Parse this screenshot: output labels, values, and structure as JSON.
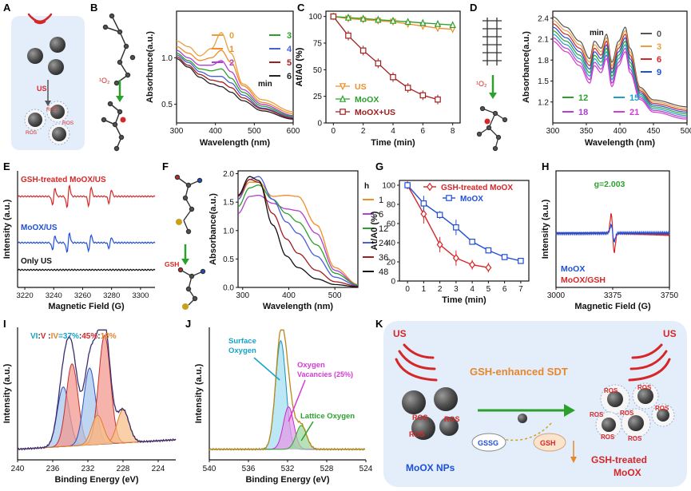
{
  "panel_labels": {
    "A": "A",
    "B": "B",
    "C": "C",
    "D": "D",
    "E": "E",
    "F": "F",
    "G": "G",
    "H": "H",
    "I": "I",
    "J": "J",
    "K": "K"
  },
  "colors": {
    "red": "#d62728",
    "blue": "#1f4fd6",
    "green": "#2ca02c",
    "orange": "#f28c28",
    "purple": "#b040d0",
    "darkred": "#a31d1d",
    "cyan": "#17a2c8",
    "magenta": "#d43ad4",
    "paleblue": "#e3eefa"
  },
  "panelA": {
    "us": "US",
    "ros": "ROS",
    "o2": "¹O₂"
  },
  "panelB": {
    "chart_data": {
      "type": "line",
      "title": "",
      "xlabel": "Wavelength (nm)",
      "ylabel": "Absorbance(a.u.)",
      "xlim": [
        300,
        600
      ],
      "ylim": [
        0.3,
        1.5
      ],
      "xticks": [
        "300",
        "400",
        "500",
        "600"
      ],
      "yticks": [
        "0.5",
        "1.0"
      ],
      "legend_title": "min",
      "series": [
        {
          "name": "0",
          "color": "#e8a040",
          "values": [
            [
              300,
              1.18
            ],
            [
              330,
              1.12
            ],
            [
              360,
              1.02
            ],
            [
              390,
              1.1
            ],
            [
              415,
              1.27
            ],
            [
              440,
              1.05
            ],
            [
              470,
              0.72
            ],
            [
              520,
              0.55
            ],
            [
              600,
              0.42
            ]
          ]
        },
        {
          "name": "1",
          "color": "#f28c28",
          "values": [
            [
              300,
              1.12
            ],
            [
              330,
              1.05
            ],
            [
              360,
              0.97
            ],
            [
              390,
              1.0
            ],
            [
              415,
              1.08
            ],
            [
              440,
              0.95
            ],
            [
              470,
              0.7
            ],
            [
              520,
              0.52
            ],
            [
              600,
              0.4
            ]
          ]
        },
        {
          "name": "2",
          "color": "#b040d0",
          "values": [
            [
              300,
              1.08
            ],
            [
              330,
              1.0
            ],
            [
              360,
              0.92
            ],
            [
              390,
              0.92
            ],
            [
              415,
              0.97
            ],
            [
              440,
              0.85
            ],
            [
              470,
              0.66
            ],
            [
              520,
              0.5
            ],
            [
              600,
              0.38
            ]
          ]
        },
        {
          "name": "3",
          "color": "#2ca02c",
          "values": [
            [
              300,
              1.05
            ],
            [
              330,
              0.97
            ],
            [
              360,
              0.88
            ],
            [
              390,
              0.86
            ],
            [
              415,
              0.88
            ],
            [
              440,
              0.78
            ],
            [
              470,
              0.63
            ],
            [
              520,
              0.48
            ],
            [
              600,
              0.37
            ]
          ]
        },
        {
          "name": "4",
          "color": "#4a5ed8",
          "values": [
            [
              300,
              1.03
            ],
            [
              330,
              0.95
            ],
            [
              360,
              0.85
            ],
            [
              390,
              0.8
            ],
            [
              415,
              0.8
            ],
            [
              440,
              0.73
            ],
            [
              470,
              0.6
            ],
            [
              520,
              0.46
            ],
            [
              600,
              0.36
            ]
          ]
        },
        {
          "name": "5",
          "color": "#a31d1d",
          "values": [
            [
              300,
              1.01
            ],
            [
              330,
              0.92
            ],
            [
              360,
              0.82
            ],
            [
              390,
              0.76
            ],
            [
              415,
              0.74
            ],
            [
              440,
              0.68
            ],
            [
              470,
              0.57
            ],
            [
              520,
              0.45
            ],
            [
              600,
              0.35
            ]
          ]
        },
        {
          "name": "6",
          "color": "#222222",
          "values": [
            [
              300,
              0.99
            ],
            [
              330,
              0.9
            ],
            [
              360,
              0.79
            ],
            [
              390,
              0.72
            ],
            [
              415,
              0.69
            ],
            [
              440,
              0.63
            ],
            [
              470,
              0.54
            ],
            [
              520,
              0.43
            ],
            [
              600,
              0.34
            ]
          ]
        }
      ]
    }
  },
  "panelC": {
    "chart_data": {
      "type": "line",
      "xlabel": "Time (min)",
      "ylabel": "At/A0 (%)",
      "xlim": [
        -0.5,
        8.5
      ],
      "ylim": [
        0,
        105
      ],
      "xticks": [
        "0",
        "2",
        "4",
        "6",
        "8"
      ],
      "yticks": [
        "0",
        "25",
        "50",
        "75",
        "100"
      ],
      "series": [
        {
          "name": "US",
          "color": "#f28c28",
          "marker": "triangle-down",
          "values": [
            [
              0,
              100
            ],
            [
              1,
              98
            ],
            [
              2,
              97
            ],
            [
              3,
              96
            ],
            [
              4,
              95
            ],
            [
              5,
              93
            ],
            [
              6,
              91
            ],
            [
              7,
              89
            ],
            [
              8,
              88
            ]
          ]
        },
        {
          "name": "MoOX",
          "color": "#2ca02c",
          "marker": "triangle",
          "values": [
            [
              0,
              100
            ],
            [
              1,
              99
            ],
            [
              2,
              98
            ],
            [
              3,
              97
            ],
            [
              4,
              96
            ],
            [
              5,
              95
            ],
            [
              6,
              94
            ],
            [
              7,
              93
            ],
            [
              8,
              92
            ]
          ]
        },
        {
          "name": "MoOX+US",
          "color": "#a31d1d",
          "marker": "square",
          "values": [
            [
              0,
              100
            ],
            [
              1,
              82
            ],
            [
              2,
              68
            ],
            [
              3,
              56
            ],
            [
              4,
              43
            ],
            [
              5,
              33
            ],
            [
              6,
              26
            ],
            [
              7,
              22
            ]
          ]
        }
      ]
    }
  },
  "panelD": {
    "chart_data": {
      "type": "line",
      "xlabel": "Wavelength (nm)",
      "ylabel": "Absorbance(a.u.)",
      "xlim": [
        300,
        500
      ],
      "ylim": [
        0.9,
        2.5
      ],
      "xticks": [
        "300",
        "350",
        "400",
        "450",
        "500"
      ],
      "yticks": [
        "1.2",
        "1.5",
        "1.8",
        "2.1",
        "2.4"
      ],
      "legend_title": "min",
      "series": [
        {
          "name": "0",
          "color": "#555555",
          "offset": 0.22
        },
        {
          "name": "3",
          "color": "#e8a040",
          "offset": 0.17
        },
        {
          "name": "6",
          "color": "#d62728",
          "offset": 0.12
        },
        {
          "name": "9",
          "color": "#1f4fd6",
          "offset": 0.07
        },
        {
          "name": "12",
          "color": "#2ca02c",
          "offset": 0.02
        },
        {
          "name": "15",
          "color": "#17a2c8",
          "offset": -0.03
        },
        {
          "name": "18",
          "color": "#b040d0",
          "offset": -0.08
        },
        {
          "name": "21",
          "color": "#d43ad4",
          "offset": -0.13
        }
      ],
      "base": [
        [
          300,
          2.2
        ],
        [
          320,
          2.05
        ],
        [
          340,
          1.85
        ],
        [
          355,
          1.6
        ],
        [
          362,
          1.85
        ],
        [
          372,
          1.75
        ],
        [
          380,
          1.95
        ],
        [
          388,
          1.55
        ],
        [
          398,
          1.85
        ],
        [
          408,
          2.05
        ],
        [
          415,
          1.75
        ],
        [
          430,
          1.3
        ],
        [
          450,
          1.12
        ],
        [
          500,
          1.02
        ]
      ]
    }
  },
  "panelE": {
    "chart_data": {
      "type": "line",
      "xlabel": "Magnetic Field (G)",
      "ylabel": "Intensity (a.u.)",
      "xlim": [
        3215,
        3310
      ],
      "xticks": [
        "3220",
        "3240",
        "3260",
        "3280",
        "3300"
      ],
      "series": [
        {
          "name": "GSH-treated MoOX/US",
          "color": "#d62728"
        },
        {
          "name": "MoOX/US",
          "color": "#1f4fd6"
        },
        {
          "name": "Only US",
          "color": "#111111"
        }
      ]
    }
  },
  "panelF": {
    "chart_data": {
      "type": "line",
      "xlabel": "Wavelength (nm)",
      "ylabel": "Absorbance(a.u.)",
      "xlim": [
        290,
        550
      ],
      "ylim": [
        0,
        2.05
      ],
      "xticks": [
        "300",
        "400",
        "500"
      ],
      "yticks": [
        "0.0",
        "0.5",
        "1.0",
        "1.5",
        "2.0"
      ],
      "legend_title": "h",
      "series": [
        {
          "name": "1",
          "color": "#f28c28"
        },
        {
          "name": "6",
          "color": "#b040d0"
        },
        {
          "name": "12",
          "color": "#2ca02c"
        },
        {
          "name": "24",
          "color": "#4a5ed8"
        },
        {
          "name": "36",
          "color": "#a31d1d"
        },
        {
          "name": "48",
          "color": "#111111"
        }
      ]
    },
    "gsh": "GSH"
  },
  "panelG": {
    "chart_data": {
      "type": "line",
      "xlabel": "Time (min)",
      "ylabel": "At/A0 (%)",
      "xlim": [
        -0.5,
        7.5
      ],
      "ylim": [
        0,
        105
      ],
      "xticks": [
        "0",
        "1",
        "2",
        "3",
        "4",
        "5",
        "6",
        "7"
      ],
      "yticks": [
        "0",
        "20",
        "40",
        "60",
        "80",
        "100"
      ],
      "series": [
        {
          "name": "GSH-treated MoOX",
          "color": "#d62728",
          "marker": "diamond",
          "values": [
            [
              0,
              100
            ],
            [
              1,
              70
            ],
            [
              2,
              38
            ],
            [
              3,
              24
            ],
            [
              4,
              17
            ],
            [
              5,
              14
            ]
          ]
        },
        {
          "name": "MoOX",
          "color": "#1f4fd6",
          "marker": "square",
          "values": [
            [
              0,
              100
            ],
            [
              1,
              81
            ],
            [
              2,
              69
            ],
            [
              3,
              56
            ],
            [
              4,
              41
            ],
            [
              5,
              32
            ],
            [
              6,
              25
            ],
            [
              7,
              21
            ]
          ]
        }
      ]
    }
  },
  "panelH": {
    "chart_data": {
      "type": "line",
      "xlabel": "Magnetic Field (G)",
      "ylabel": "Intensity (a.u.)",
      "xlim": [
        3000,
        3750
      ],
      "xticks": [
        "3000",
        "3375",
        "3750"
      ],
      "annotation": "g=2.003",
      "series": [
        {
          "name": "MoOX",
          "color": "#1f4fd6"
        },
        {
          "name": "MoOX/GSH",
          "color": "#d62728"
        }
      ]
    }
  },
  "panelI": {
    "chart_data": {
      "type": "area",
      "xlabel": "Binding Energy (eV)",
      "ylabel": "Intensity (a.u.)",
      "xlim": [
        240,
        222
      ],
      "xticks": [
        "240",
        "236",
        "232",
        "228",
        "224"
      ],
      "ratio_label": {
        "vi": "VI",
        "v": "V",
        "iv": "IV",
        "eq": ":",
        "pct_vi": "=37%",
        "pct_v": "45%",
        "pct_iv": "18%"
      },
      "peaks": [
        {
          "center": 234.8,
          "amp": 0.45,
          "fill": "#a8c8ec",
          "line": "#3050c0"
        },
        {
          "center": 233.8,
          "amp": 0.62,
          "fill": "#f29a90",
          "line": "#c03030"
        },
        {
          "center": 231.8,
          "amp": 0.58,
          "fill": "#a8c8ec",
          "line": "#3050c0"
        },
        {
          "center": 230.1,
          "amp": 0.82,
          "fill": "#f29a90",
          "line": "#c03030"
        },
        {
          "center": 228.0,
          "amp": 0.25,
          "fill": "#f7c08a",
          "line": "#e08030"
        },
        {
          "center": 230.9,
          "amp": 0.22,
          "fill": "#f7c08a",
          "line": "#e08030"
        }
      ]
    }
  },
  "panelJ": {
    "chart_data": {
      "type": "area",
      "xlabel": "Binding Energy (eV)",
      "ylabel": "Intensity (a.u.)",
      "xlim": [
        540,
        524
      ],
      "xticks": [
        "540",
        "536",
        "532",
        "528",
        "524"
      ],
      "annotations": {
        "surface": "Surface Oxygen",
        "vac": "Oxygen Vacancies (25%)",
        "lattice": "Lattice Oxygen"
      },
      "peaks": [
        {
          "center": 532.7,
          "amp": 0.82,
          "fill": "#a6dff0",
          "line": "#1a8fb8"
        },
        {
          "center": 531.9,
          "amp": 0.32,
          "fill": "#e59be8",
          "line": "#c02fc8"
        },
        {
          "center": 530.6,
          "amp": 0.18,
          "fill": "#9fd89f",
          "line": "#2ca02c"
        }
      ]
    }
  },
  "panelK": {
    "title": "GSH-enhanced SDT",
    "us_left": "US",
    "us_right": "US",
    "ros": "ROS",
    "gssg": "GSSG",
    "gsh": "GSH",
    "left_label": "MoOX NPs",
    "right_label_1": "GSH-treated",
    "right_label_2": "MoOX"
  }
}
